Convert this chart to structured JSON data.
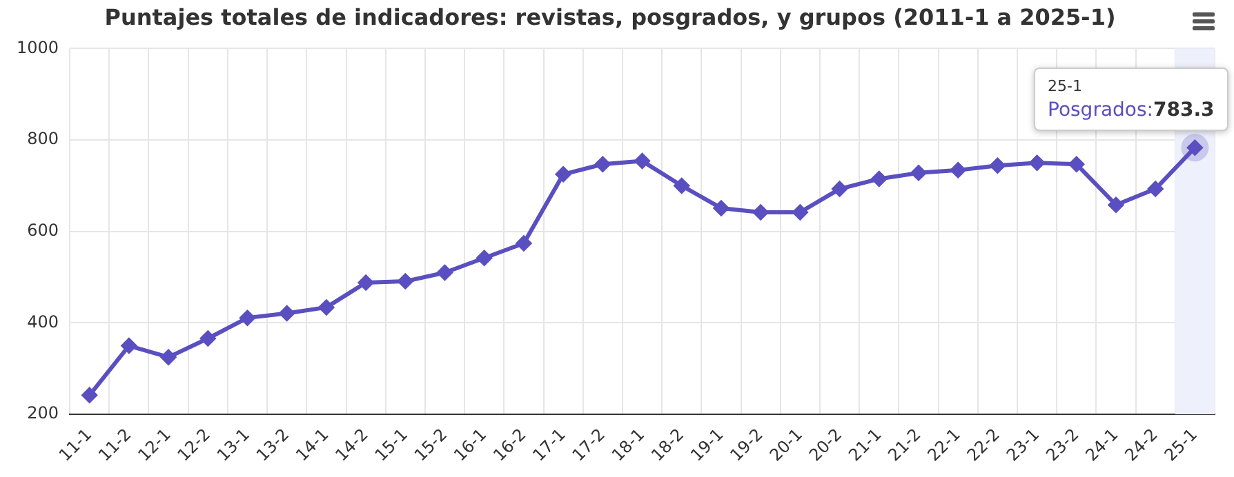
{
  "chart_data": {
    "type": "line",
    "title": "Puntajes totales de indicadores: revistas, posgrados, y grupos (2011-1 a 2025-1)",
    "categories": [
      "11-1",
      "11-2",
      "12-1",
      "12-2",
      "13-1",
      "13-2",
      "14-1",
      "14-2",
      "15-1",
      "15-2",
      "16-1",
      "16-2",
      "17-1",
      "17-2",
      "18-1",
      "18-2",
      "19-1",
      "19-2",
      "20-1",
      "20-2",
      "21-1",
      "21-2",
      "22-1",
      "22-2",
      "23-1",
      "23-2",
      "24-1",
      "24-2",
      "25-1"
    ],
    "series": [
      {
        "name": "Posgrados:",
        "color": "#5a4fc0",
        "values": [
          242,
          350,
          325,
          366,
          411,
          421,
          434,
          488,
          491,
          510,
          542,
          574,
          725,
          747,
          754,
          700,
          651,
          642,
          642,
          693,
          715,
          728,
          734,
          744,
          750,
          747,
          658,
          693,
          783.3
        ],
        "value_labels": [
          null,
          null,
          null,
          null,
          null,
          null,
          null,
          null,
          null,
          null,
          null,
          null,
          null,
          null,
          null,
          null,
          null,
          null,
          null,
          null,
          null,
          null,
          null,
          null,
          null,
          null,
          null,
          null,
          "783.3"
        ]
      }
    ],
    "ylim": [
      200,
      1000
    ],
    "yticks": [
      200,
      400,
      600,
      800,
      1000
    ],
    "grid": true,
    "legend": false,
    "marker": "diamond",
    "line_style": "solid",
    "bands": [
      {
        "axis": "x",
        "from": "25-1",
        "to": "25-1",
        "color": "#eef0fc"
      }
    ],
    "annotations": [
      "25-1"
    ]
  }
}
